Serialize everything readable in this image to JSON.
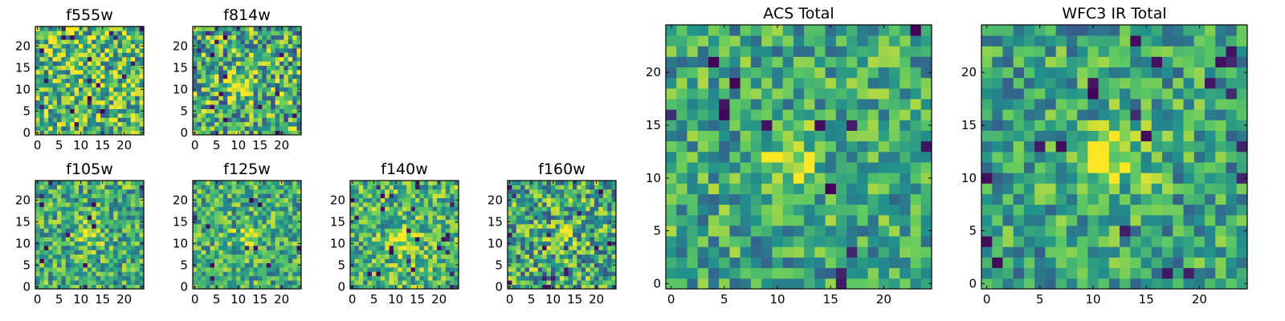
{
  "chart_data": {
    "type": "heatmap",
    "colormap": "viridis",
    "colormap_stops": [
      "#440154",
      "#3b528b",
      "#21918c",
      "#5ec962",
      "#fde725"
    ],
    "panels": [
      {
        "title": "f555w",
        "grid_size": 25,
        "xticks": [
          0,
          5,
          10,
          15,
          20
        ],
        "yticks": [
          0,
          5,
          10,
          15,
          20
        ],
        "xlim": [
          0,
          24
        ],
        "ylim": [
          0,
          24
        ],
        "source_center": [
          11,
          11
        ],
        "source_strength": 0.05,
        "noise_level": 0.38,
        "base_level": 0.68,
        "seed": 11
      },
      {
        "title": "f814w",
        "grid_size": 25,
        "xticks": [
          0,
          5,
          10,
          15,
          20
        ],
        "yticks": [
          0,
          5,
          10,
          15,
          20
        ],
        "xlim": [
          0,
          24
        ],
        "ylim": [
          0,
          24
        ],
        "source_center": [
          11,
          11
        ],
        "source_strength": 0.3,
        "noise_level": 0.4,
        "base_level": 0.62,
        "seed": 23
      },
      {
        "title": "f105w",
        "grid_size": 25,
        "xticks": [
          0,
          5,
          10,
          15,
          20
        ],
        "yticks": [
          0,
          5,
          10,
          15,
          20
        ],
        "xlim": [
          0,
          24
        ],
        "ylim": [
          0,
          24
        ],
        "source_center": [
          12,
          12
        ],
        "source_strength": 0.25,
        "noise_level": 0.3,
        "base_level": 0.62,
        "seed": 37
      },
      {
        "title": "f125w",
        "grid_size": 25,
        "xticks": [
          0,
          5,
          10,
          15,
          20
        ],
        "yticks": [
          0,
          5,
          10,
          15,
          20
        ],
        "xlim": [
          0,
          24
        ],
        "ylim": [
          0,
          24
        ],
        "source_center": [
          12,
          11
        ],
        "source_strength": 0.25,
        "noise_level": 0.3,
        "base_level": 0.62,
        "seed": 41
      },
      {
        "title": "f140w",
        "grid_size": 25,
        "xticks": [
          0,
          5,
          10,
          15,
          20
        ],
        "yticks": [
          0,
          5,
          10,
          15,
          20
        ],
        "xlim": [
          0,
          24
        ],
        "ylim": [
          0,
          24
        ],
        "source_center": [
          12,
          11
        ],
        "source_strength": 0.22,
        "noise_level": 0.3,
        "base_level": 0.66,
        "seed": 53
      },
      {
        "title": "f160w",
        "grid_size": 25,
        "xticks": [
          0,
          5,
          10,
          15,
          20
        ],
        "yticks": [
          0,
          5,
          10,
          15,
          20
        ],
        "xlim": [
          0,
          24
        ],
        "ylim": [
          0,
          24
        ],
        "source_center": [
          12,
          11
        ],
        "source_strength": 0.2,
        "noise_level": 0.36,
        "base_level": 0.6,
        "seed": 67
      },
      {
        "title": "ACS Total",
        "grid_size": 25,
        "xticks": [
          0,
          5,
          10,
          15,
          20
        ],
        "yticks": [
          0,
          5,
          10,
          15,
          20
        ],
        "xlim": [
          0,
          24
        ],
        "ylim": [
          0,
          24
        ],
        "source_center": [
          11,
          11
        ],
        "source_strength": 0.3,
        "noise_level": 0.28,
        "base_level": 0.6,
        "seed": 79
      },
      {
        "title": "WFC3 IR Total",
        "grid_size": 25,
        "xticks": [
          0,
          5,
          10,
          15,
          20
        ],
        "yticks": [
          0,
          5,
          10,
          15,
          20
        ],
        "xlim": [
          0,
          24
        ],
        "ylim": [
          0,
          24
        ],
        "source_center": [
          12,
          12
        ],
        "source_strength": 0.32,
        "noise_level": 0.28,
        "base_level": 0.58,
        "seed": 97
      }
    ]
  }
}
